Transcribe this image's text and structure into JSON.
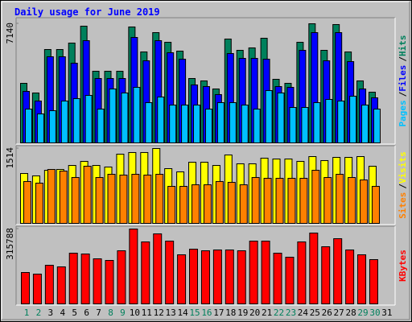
{
  "chart_data": {
    "type": "bar",
    "title": "Daily usage for June 2019",
    "categories": [
      "1",
      "2",
      "3",
      "4",
      "5",
      "6",
      "7",
      "8",
      "9",
      "10",
      "11",
      "12",
      "13",
      "14",
      "15",
      "16",
      "17",
      "18",
      "19",
      "20",
      "21",
      "22",
      "23",
      "24",
      "25",
      "26",
      "27",
      "28",
      "29",
      "30",
      "31"
    ],
    "category_colors": [
      "#00805C",
      "#00805C",
      "#000000",
      "#000000",
      "#000000",
      "#000000",
      "#000000",
      "#00805C",
      "#00805C",
      "#000000",
      "#000000",
      "#000000",
      "#000000",
      "#000000",
      "#00805C",
      "#00805C",
      "#000000",
      "#000000",
      "#000000",
      "#000000",
      "#000000",
      "#00805C",
      "#00805C",
      "#000000",
      "#000000",
      "#000000",
      "#000000",
      "#000000",
      "#00805C",
      "#00805C",
      "#000000"
    ],
    "legend_separator": "/",
    "panels": [
      {
        "ylim": [
          0,
          7140
        ],
        "yticks": [
          7140
        ],
        "series": [
          {
            "name": "Hits",
            "color": "#00805C",
            "values": [
              3570,
              2991,
              5596,
              5596,
              5982,
              6995,
              4294,
              4294,
              4294,
              6947,
              5451,
              6609,
              6030,
              5500,
              3859,
              3715,
              3232,
              6223,
              5548,
              5693,
              6272,
              3811,
              3570,
              6030,
              7140,
              5548,
              7092,
              5451,
              3715,
              3039,
              0
            ]
          },
          {
            "name": "Files",
            "color": "#0000FF",
            "values": [
              3088,
              2509,
              5162,
              5162,
              4776,
              6127,
              3859,
              3859,
              3859,
              6320,
              4921,
              6127,
              5403,
              5017,
              3473,
              3377,
              2895,
              5355,
              5065,
              5065,
              5017,
              3377,
              3329,
              5548,
              6609,
              4921,
              6609,
              4873,
              3232,
              2702,
              0
            ]
          },
          {
            "name": "Pages",
            "color": "#00C0FF",
            "values": [
              2026,
              1737,
              1930,
              2508,
              2653,
              2846,
              2026,
              3232,
              2991,
              3329,
              2412,
              2750,
              2267,
              2267,
              2267,
              2026,
              2412,
              2412,
              2267,
              2026,
              3136,
              2991,
              2123,
              2123,
              2412,
              2605,
              2508,
              2798,
              2267,
              2026,
              0
            ]
          }
        ]
      },
      {
        "ylim": [
          0,
          1514
        ],
        "yticks": [
          1514
        ],
        "series": [
          {
            "name": "Visits",
            "color": "#FFFF00",
            "values": [
              1009,
              961,
              1074,
              1091,
              1172,
              1254,
              1172,
              1140,
              1400,
              1433,
              1433,
              1514,
              1107,
              1042,
              1237,
              1237,
              1172,
              1384,
              1205,
              1205,
              1319,
              1302,
              1302,
              1254,
              1351,
              1270,
              1335,
              1335,
              1351,
              1156,
              0
            ]
          },
          {
            "name": "Sites",
            "color": "#FF8000",
            "values": [
              847,
              814,
              1091,
              1058,
              928,
              1156,
              928,
              993,
              977,
              993,
              977,
              993,
              749,
              749,
              781,
              781,
              847,
              830,
              781,
              928,
              912,
              912,
              912,
              912,
              1074,
              928,
              993,
              928,
              879,
              749,
              0
            ]
          }
        ]
      },
      {
        "ylim": [
          0,
          315788
        ],
        "yticks": [
          315788
        ],
        "series": [
          {
            "name": "KBytes",
            "color": "#FF0000",
            "values": [
              132428,
              125637,
              162989,
              156198,
              213923,
              210528,
              190154,
              183363,
              224111,
              315788,
              261463,
              295419,
              264858,
              207133,
              230903,
              224111,
              227506,
              227506,
              224111,
              264858,
              264858,
              213923,
              196945,
              261463,
              298812,
              241087,
              275044,
              227506,
              207133,
              186758,
              0
            ]
          }
        ]
      }
    ]
  }
}
